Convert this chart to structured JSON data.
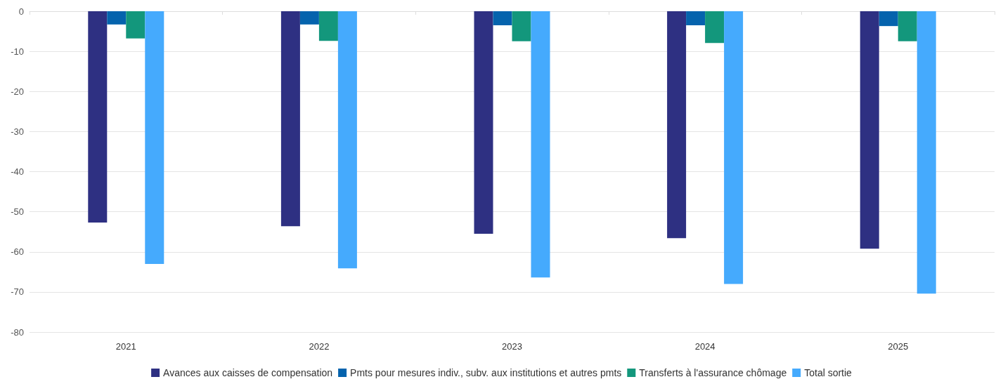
{
  "chart_data": {
    "type": "bar",
    "categories": [
      "2021",
      "2022",
      "2023",
      "2024",
      "2025"
    ],
    "series": [
      {
        "name": "Avances aux caisses de compensation",
        "color": "#2e3082",
        "values": [
          -52.7,
          -53.6,
          -55.5,
          -56.6,
          -59.2
        ]
      },
      {
        "name": "Pmts pour mesures indiv., subv. aux institutions et autres pmts",
        "color": "#0563ad",
        "values": [
          -3.3,
          -3.3,
          -3.5,
          -3.5,
          -3.7
        ]
      },
      {
        "name": "Transferts à l'assurance chômage",
        "color": "#13977c",
        "values": [
          -6.8,
          -7.4,
          -7.5,
          -7.9,
          -7.5
        ]
      },
      {
        "name": "Total sortie",
        "color": "#45aafd",
        "values": [
          -63.0,
          -64.1,
          -66.4,
          -68.0,
          -70.4
        ]
      }
    ],
    "ylim": [
      -80,
      0
    ],
    "yticks": [
      -80,
      -70,
      -60,
      -50,
      -40,
      -30,
      -20,
      -10,
      0
    ],
    "grid": "y",
    "legend": "bottom"
  }
}
